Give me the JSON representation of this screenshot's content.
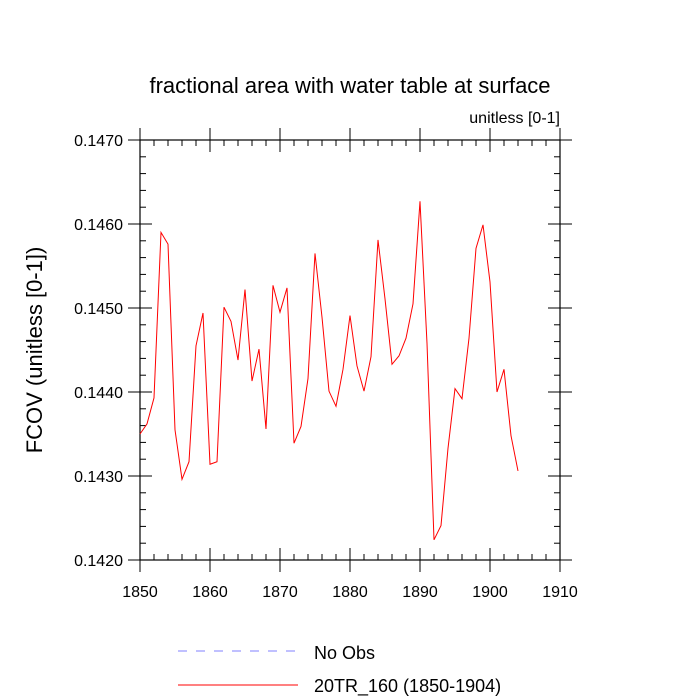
{
  "chart_data": {
    "type": "line",
    "title": "fractional area with water table at surface",
    "units_label": "unitless [0-1]",
    "ylabel": "FCOV  (unitless [0-1])",
    "xlabel": "",
    "xlim": [
      1850,
      1910
    ],
    "ylim": [
      0.142,
      0.147
    ],
    "x_ticks": [
      1850,
      1860,
      1870,
      1880,
      1890,
      1900,
      1910
    ],
    "x_tick_labels": [
      "1850",
      "1860",
      "1870",
      "1880",
      "1890",
      "1900",
      "1910"
    ],
    "y_ticks": [
      0.142,
      0.143,
      0.144,
      0.145,
      0.146,
      0.147
    ],
    "y_tick_labels": [
      "0.1420",
      "0.1430",
      "0.1440",
      "0.1450",
      "0.1460",
      "0.1470"
    ],
    "grid": false,
    "legend_position": "bottom",
    "series": [
      {
        "name": "No Obs",
        "color": "#8080ff",
        "dash": "dashed",
        "x": [],
        "values": []
      },
      {
        "name": "20TR_160 (1850-1904)",
        "color": "#ff0000",
        "dash": "solid",
        "x": [
          1850,
          1851,
          1852,
          1853,
          1854,
          1855,
          1856,
          1857,
          1858,
          1859,
          1860,
          1861,
          1862,
          1863,
          1864,
          1865,
          1866,
          1867,
          1868,
          1869,
          1870,
          1871,
          1872,
          1873,
          1874,
          1875,
          1876,
          1877,
          1878,
          1879,
          1880,
          1881,
          1882,
          1883,
          1884,
          1885,
          1886,
          1887,
          1888,
          1889,
          1890,
          1891,
          1892,
          1893,
          1894,
          1895,
          1896,
          1897,
          1898,
          1899,
          1900,
          1901,
          1902,
          1903,
          1904
        ],
        "values": [
          0.1435,
          0.14362,
          0.14393,
          0.1459,
          0.14576,
          0.14355,
          0.14296,
          0.14317,
          0.14455,
          0.14494,
          0.14314,
          0.14317,
          0.14501,
          0.14484,
          0.14438,
          0.14522,
          0.14413,
          0.14451,
          0.14356,
          0.14527,
          0.14495,
          0.14524,
          0.14339,
          0.14359,
          0.14416,
          0.14565,
          0.14489,
          0.14401,
          0.14383,
          0.14427,
          0.14491,
          0.14431,
          0.14401,
          0.14442,
          0.14581,
          0.14511,
          0.14433,
          0.14443,
          0.14464,
          0.14505,
          0.14627,
          0.14458,
          0.14224,
          0.14241,
          0.14333,
          0.14404,
          0.14392,
          0.14464,
          0.14571,
          0.14599,
          0.14531,
          0.144,
          0.14427,
          0.14348,
          0.14306
        ]
      }
    ]
  }
}
